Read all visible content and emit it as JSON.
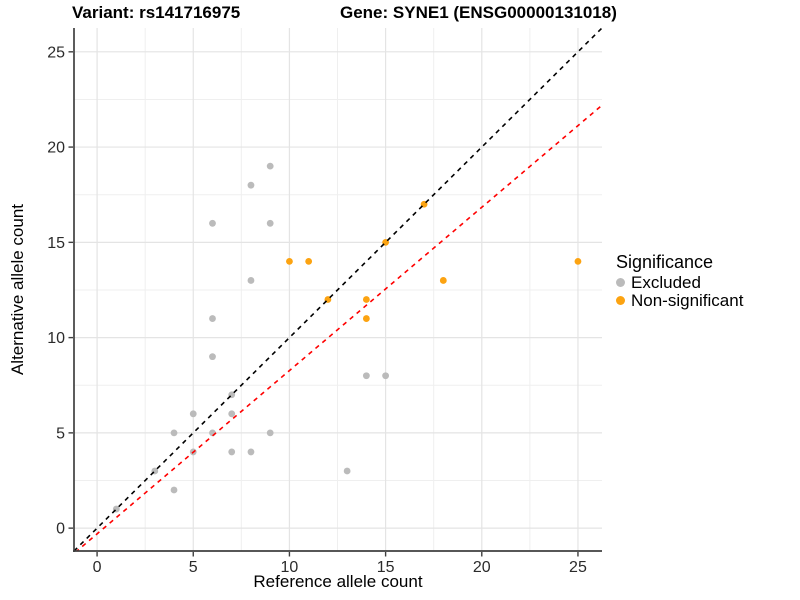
{
  "header": {
    "variant_title": "Variant: rs141716975",
    "gene_title": "Gene: SYNE1 (ENSG00000131018)"
  },
  "chart_data": {
    "type": "scatter",
    "title_left": "Variant: rs141716975",
    "title_right": "Gene: SYNE1 (ENSG00000131018)",
    "xlabel": "Reference allele count",
    "ylabel": "Alternative allele count",
    "xlim": [
      -1.2,
      26.25
    ],
    "ylim": [
      -1.2,
      26.25
    ],
    "x_ticks": [
      0,
      5,
      10,
      15,
      20,
      25
    ],
    "y_ticks": [
      0,
      5,
      10,
      15,
      20,
      25
    ],
    "minor_ticks": [
      2.5,
      7.5,
      12.5,
      17.5,
      22.5
    ],
    "grid": "major+minor on white background, black axis lines left and bottom",
    "legend_title": "Significance",
    "legend_position": "right",
    "series": [
      {
        "name": "Excluded",
        "color": "#BBBBBB",
        "points": [
          [
            1,
            1
          ],
          [
            3,
            3
          ],
          [
            4,
            2
          ],
          [
            4,
            5
          ],
          [
            5,
            4
          ],
          [
            5,
            6
          ],
          [
            6,
            5
          ],
          [
            6,
            9
          ],
          [
            6,
            11
          ],
          [
            6,
            16
          ],
          [
            7,
            4
          ],
          [
            7,
            6
          ],
          [
            7,
            7
          ],
          [
            8,
            4
          ],
          [
            8,
            13
          ],
          [
            8,
            18
          ],
          [
            9,
            5
          ],
          [
            9,
            16
          ],
          [
            9,
            19
          ],
          [
            13,
            3
          ],
          [
            14,
            8
          ],
          [
            15,
            8
          ]
        ]
      },
      {
        "name": "Non-significant",
        "color": "#FCA311",
        "points": [
          [
            10,
            14
          ],
          [
            11,
            14
          ],
          [
            12,
            12
          ],
          [
            14,
            11
          ],
          [
            14,
            12
          ],
          [
            15,
            15
          ],
          [
            17,
            17
          ],
          [
            18,
            13
          ],
          [
            25,
            14
          ]
        ]
      }
    ],
    "lines": [
      {
        "name": "identity-line",
        "color": "#000000",
        "style": "dashed",
        "slope": 1,
        "intercept": 0
      },
      {
        "name": "fit-line",
        "color": "#FF0000",
        "style": "dashed",
        "slope": 0.857,
        "intercept": -0.3
      }
    ],
    "style": {
      "major_grid_color": "#E4E4E4",
      "minor_grid_color": "#EFEFEF",
      "axis_line_color": "#3F3F3F",
      "tick_label_color": "#2B2B2B",
      "point_radius": 3.4
    }
  }
}
